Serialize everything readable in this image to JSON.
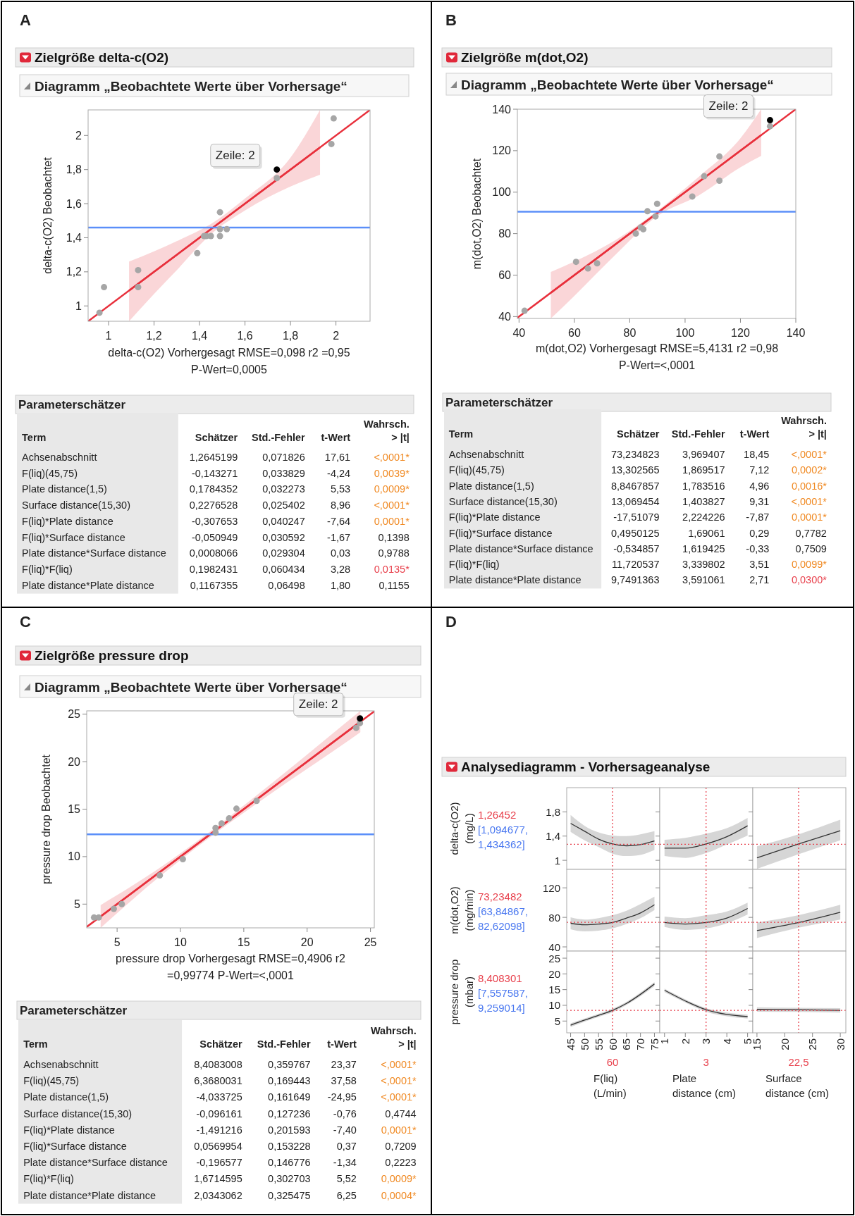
{
  "chart_data": [
    {
      "type": "scatter",
      "title": "Zielgröße delta-c(O2)",
      "subtitle": "Diagramm „Beobachtete Werte über Vorhersage“",
      "xlabel": "delta-c(O2) Vorhergesagt RMSE=0,098 r2 =0,95 P-Wert=0,0005",
      "ylabel": "delta-c(O2) Beobachtet",
      "annotations": [
        "A",
        {
          "text": "Zeile: 2",
          "x": 1.74,
          "y": 1.8
        }
      ],
      "xlim": [
        0.91,
        2.15
      ],
      "ylim": [
        0.91,
        2.15
      ],
      "xticks": [
        1,
        {
          "value": 1.2,
          "label": "1,2"
        },
        {
          "value": 1.4,
          "label": "1,4"
        },
        {
          "value": 1.6,
          "label": "1,6"
        },
        {
          "value": 1.8,
          "label": "1,8"
        },
        2
      ],
      "yticks": [
        1,
        {
          "value": 1.2,
          "label": "1,2"
        },
        {
          "value": 1.4,
          "label": "1,4"
        },
        {
          "value": 1.6,
          "label": "1,6"
        },
        {
          "value": 1.8,
          "label": "1,8"
        },
        2
      ],
      "ref_lines": [
        {
          "axis": "y",
          "value": 1.46,
          "color": "#5b8ff9",
          "line_style": "solid"
        }
      ],
      "series": [
        {
          "color": "#a6a6a6",
          "marker": "circle",
          "x": [
            0.96,
            0.98,
            1.13,
            1.13,
            1.39,
            1.42,
            1.43,
            1.45,
            1.49,
            1.49,
            1.49,
            1.52,
            1.74,
            1.98,
            1.99
          ],
          "values": [
            0.96,
            1.11,
            1.21,
            1.11,
            1.31,
            1.41,
            1.41,
            1.41,
            1.41,
            1.55,
            1.45,
            1.45,
            1.75,
            1.95,
            2.1
          ]
        },
        {
          "color": "#000000",
          "marker": "circle",
          "x": [
            1.74
          ],
          "values": [
            1.8
          ]
        },
        {
          "type": "line",
          "color": "#e8303c",
          "x": [
            0.91,
            2.15
          ],
          "values": [
            0.91,
            2.15
          ]
        },
        {
          "type": "line",
          "color": "#e8303c",
          "x": [
            1.09,
            1.2,
            1.3,
            1.45,
            1.6,
            1.8,
            1.93
          ],
          "values": [
            1.09,
            1.2,
            1.3,
            1.45,
            1.6,
            1.8,
            1.93
          ],
          "lower": [
            0.91,
            1.07,
            1.21,
            1.42,
            1.56,
            1.7,
            1.77
          ],
          "upper": [
            1.26,
            1.32,
            1.38,
            1.48,
            1.63,
            1.87,
            2.15
          ]
        }
      ]
    },
    {
      "type": "other",
      "title": "Parameterschätzer",
      "categories": [
        "Term",
        "Schätzer",
        "Std.-Fehler",
        "t-Wert",
        "Wahrsch. > |t|"
      ],
      "y_categories": [
        "Achsenabschnitt",
        "F(liq)(45,75)",
        "Plate distance(1,5)",
        "Surface distance(15,30)",
        "F(liq)*Plate distance",
        "F(liq)*Surface distance",
        "Plate distance*Surface distance",
        "F(liq)*F(liq)",
        "Plate distance*Plate distance"
      ],
      "cell_labels": [
        [
          "1,2645199",
          "0,071826",
          "17,61",
          "<,0001*"
        ],
        [
          "-0,143271",
          "0,033829",
          "-4,24",
          "0,0039*"
        ],
        [
          "0,1784352",
          "0,032273",
          "5,53",
          "0,0009*"
        ],
        [
          "0,2276528",
          "0,025402",
          "8,96",
          "<,0001*"
        ],
        [
          "-0,307653",
          "0,040247",
          "-7,64",
          "0,0001*"
        ],
        [
          "-0,050949",
          "0,030592",
          "-1,67",
          "0,1398"
        ],
        [
          "0,0008066",
          "0,029304",
          "0,03",
          "0,9788"
        ],
        [
          "0,1982431",
          "0,060434",
          "3,28",
          "0,0135*"
        ],
        [
          "0,1167355",
          "0,06498",
          "1,80",
          "0,1155"
        ]
      ],
      "colors": [
        [
          null,
          null,
          null,
          "#f08a24"
        ],
        [
          null,
          null,
          null,
          "#f08a24"
        ],
        [
          null,
          null,
          null,
          "#f08a24"
        ],
        [
          null,
          null,
          null,
          "#f08a24"
        ],
        [
          null,
          null,
          null,
          "#f08a24"
        ],
        [
          null,
          null,
          null,
          null
        ],
        [
          null,
          null,
          null,
          null
        ],
        [
          null,
          null,
          null,
          "#e8404c"
        ],
        [
          null,
          null,
          null,
          null
        ]
      ]
    },
    {
      "type": "scatter",
      "title": "Zielgröße m(dot,O2)",
      "subtitle": "Diagramm „Beobachtete Werte über Vorhersage“",
      "xlabel": "m(dot,O2) Vorhergesagt RMSE=5,4131 r2 =0,98 P-Wert=<,0001",
      "ylabel": "m(dot,O2) Beobachtet",
      "annotations": [
        "B",
        {
          "text": "Zeile: 2",
          "x": 130.7,
          "y": 134.7
        }
      ],
      "xlim": [
        39.4,
        140
      ],
      "ylim": [
        39.1,
        140
      ],
      "xticks": [
        40,
        60,
        80,
        100,
        120,
        140
      ],
      "yticks": [
        40,
        60,
        80,
        100,
        120,
        140
      ],
      "ref_lines": [
        {
          "axis": "y",
          "value": 90.6,
          "color": "#5b8ff9",
          "line_style": "solid"
        }
      ],
      "series": [
        {
          "color": "#a6a6a6",
          "marker": "circle",
          "x": [
            42,
            60.6,
            64.9,
            68.2,
            82.2,
            84,
            84.9,
            86.4,
            89.3,
            89.9,
            102.6,
            106.9,
            112.4,
            112.4,
            130.7
          ],
          "values": [
            42.8,
            66.4,
            63.2,
            65.7,
            80,
            83,
            82.1,
            90.8,
            88.3,
            94.4,
            97.9,
            107.7,
            117.2,
            105.5,
            131.8
          ]
        },
        {
          "color": "#000000",
          "marker": "circle",
          "x": [
            130.7
          ],
          "values": [
            134.7
          ]
        },
        {
          "type": "line",
          "color": "#e8303c",
          "x": [
            39.4,
            140
          ],
          "values": [
            39.4,
            140
          ]
        },
        {
          "type": "line",
          "color": "#e8303c",
          "x": [
            51.5,
            60,
            75,
            90,
            105,
            120,
            127.5
          ],
          "values": [
            51.5,
            60,
            75,
            90,
            105,
            120,
            127.5
          ],
          "lower": [
            39.1,
            50,
            70,
            88.5,
            98.5,
            112,
            117.5
          ],
          "upper": [
            61.5,
            66.5,
            77,
            91,
            107.5,
            126,
            140
          ]
        }
      ]
    },
    {
      "type": "other",
      "title": "Parameterschätzer",
      "categories": [
        "Term",
        "Schätzer",
        "Std.-Fehler",
        "t-Wert",
        "Wahrsch. > |t|"
      ],
      "y_categories": [
        "Achsenabschnitt",
        "F(liq)(45,75)",
        "Plate distance(1,5)",
        "Surface distance(15,30)",
        "F(liq)*Plate distance",
        "F(liq)*Surface distance",
        "Plate distance*Surface distance",
        "F(liq)*F(liq)",
        "Plate distance*Plate distance"
      ],
      "cell_labels": [
        [
          "73,234823",
          "3,969407",
          "18,45",
          "<,0001*"
        ],
        [
          "13,302565",
          "1,869517",
          "7,12",
          "0,0002*"
        ],
        [
          "8,8467857",
          "1,783516",
          "4,96",
          "0,0016*"
        ],
        [
          "13,069454",
          "1,403827",
          "9,31",
          "<,0001*"
        ],
        [
          "-17,51079",
          "2,224226",
          "-7,87",
          "0,0001*"
        ],
        [
          "0,4950125",
          "1,69061",
          "0,29",
          "0,7782"
        ],
        [
          "-0,534857",
          "1,619425",
          "-0,33",
          "0,7509"
        ],
        [
          "11,720537",
          "3,339802",
          "3,51",
          "0,0099*"
        ],
        [
          "9,7491363",
          "3,591061",
          "2,71",
          "0,0300*"
        ]
      ],
      "colors": [
        [
          null,
          null,
          null,
          "#f08a24"
        ],
        [
          null,
          null,
          null,
          "#f08a24"
        ],
        [
          null,
          null,
          null,
          "#f08a24"
        ],
        [
          null,
          null,
          null,
          "#f08a24"
        ],
        [
          null,
          null,
          null,
          "#f08a24"
        ],
        [
          null,
          null,
          null,
          null
        ],
        [
          null,
          null,
          null,
          null
        ],
        [
          null,
          null,
          null,
          "#f08a24"
        ],
        [
          null,
          null,
          null,
          "#e8404c"
        ]
      ]
    },
    {
      "type": "scatter",
      "title": "Zielgröße pressure drop",
      "subtitle": "Diagramm „Beobachtete Werte über Vorhersage“",
      "xlabel": "pressure drop Vorhergesagt RMSE=0,4906 r2 =0,99774 P-Wert=<,0001",
      "ylabel": "pressure drop Beobachtet",
      "annotations": [
        "C",
        {
          "text": "Zeile: 2",
          "x": 24.17,
          "y": 24.55
        }
      ],
      "xlim": [
        2.6,
        25.3
      ],
      "ylim": [
        2.5,
        25.35
      ],
      "xticks": [
        5,
        10,
        15,
        20,
        25
      ],
      "yticks": [
        5,
        10,
        15,
        20,
        25
      ],
      "ref_lines": [
        {
          "axis": "y",
          "value": 12.35,
          "color": "#5b8ff9",
          "line_style": "solid"
        }
      ],
      "series": [
        {
          "color": "#a6a6a6",
          "marker": "circle",
          "x": [
            3.18,
            3.55,
            4.74,
            5.37,
            8.37,
            10.19,
            12.77,
            12.77,
            13.25,
            13.84,
            14.42,
            16.01,
            23.87,
            24.17
          ],
          "values": [
            3.59,
            3.59,
            4.5,
            5,
            8.02,
            9.73,
            13.02,
            12.52,
            13.49,
            14.03,
            15.05,
            15.87,
            23.56,
            24.06
          ]
        },
        {
          "color": "#000000",
          "marker": "circle",
          "x": [
            24.17
          ],
          "values": [
            24.55
          ]
        },
        {
          "type": "line",
          "color": "#e8303c",
          "x": [
            2.6,
            25.3
          ],
          "values": [
            2.6,
            25.3
          ]
        },
        {
          "type": "line",
          "color": "#e8303c",
          "x": [
            3.7,
            8,
            12.4,
            17,
            22.6,
            24.2
          ],
          "values": [
            3.7,
            8,
            12.4,
            17,
            22.6,
            24.2
          ],
          "lower": [
            2.5,
            7.5,
            12.1,
            16.5,
            21.6,
            23.1
          ],
          "upper": [
            4.9,
            8.5,
            12.7,
            17.5,
            23.6,
            25.35
          ]
        }
      ]
    },
    {
      "type": "other",
      "title": "Parameterschätzer",
      "categories": [
        "Term",
        "Schätzer",
        "Std.-Fehler",
        "t-Wert",
        "Wahrsch. > |t|"
      ],
      "y_categories": [
        "Achsenabschnitt",
        "F(liq)(45,75)",
        "Plate distance(1,5)",
        "Surface distance(15,30)",
        "F(liq)*Plate distance",
        "F(liq)*Surface distance",
        "Plate distance*Surface distance",
        "F(liq)*F(liq)",
        "Plate distance*Plate distance"
      ],
      "cell_labels": [
        [
          "8,4083008",
          "0,359767",
          "23,37",
          "<,0001*"
        ],
        [
          "6,3680031",
          "0,169443",
          "37,58",
          "<,0001*"
        ],
        [
          "-4,033725",
          "0,161649",
          "-24,95",
          "<,0001*"
        ],
        [
          "-0,096161",
          "0,127236",
          "-0,76",
          "0,4744"
        ],
        [
          "-1,491216",
          "0,201593",
          "-7,40",
          "0,0001*"
        ],
        [
          "0,0569954",
          "0,153228",
          "0,37",
          "0,7209"
        ],
        [
          "-0,196577",
          "0,146776",
          "-1,34",
          "0,2223"
        ],
        [
          "1,6714595",
          "0,302703",
          "5,52",
          "0,0009*"
        ],
        [
          "2,0343062",
          "0,325475",
          "6,25",
          "0,0004*"
        ]
      ],
      "colors": [
        [
          null,
          null,
          null,
          "#f08a24"
        ],
        [
          null,
          null,
          null,
          "#f08a24"
        ],
        [
          null,
          null,
          null,
          "#f08a24"
        ],
        [
          null,
          null,
          null,
          null
        ],
        [
          null,
          null,
          null,
          "#f08a24"
        ],
        [
          null,
          null,
          null,
          null
        ],
        [
          null,
          null,
          null,
          null
        ],
        [
          null,
          null,
          null,
          "#f08a24"
        ],
        [
          null,
          null,
          null,
          "#f08a24"
        ]
      ]
    },
    {
      "type": "line",
      "title": "Analysediagramm - Vorhersageanalyse",
      "ylabel": "delta-c(O2) (mg/L)",
      "annotations": [
        "D",
        "[1,094677, 1,434362]"
      ],
      "xlim": [
        43.6,
        76.9
      ],
      "ylim": [
        0.85,
        2.2
      ],
      "xticks": [
        45,
        50,
        55,
        60,
        65,
        70,
        75
      ],
      "yticks": [
        1,
        {
          "value": 1.4,
          "label": "1,4"
        },
        {
          "value": 1.8,
          "label": "1,8"
        }
      ],
      "tick_labels": "y",
      "ref_lines": [
        {
          "axis": "x",
          "value": 60,
          "color": "#e8404c",
          "line_style": "dotted"
        },
        {
          "axis": "y",
          "value": 1.26452,
          "label": "1,26452",
          "color": "#e8404c",
          "line_style": "dotted"
        }
      ],
      "series": [
        {
          "color": "#333333",
          "x": [
            45,
            50,
            55,
            60,
            65,
            70,
            75
          ],
          "values": [
            1.61,
            1.48,
            1.35,
            1.27,
            1.24,
            1.26,
            1.32
          ],
          "lower": [
            1.47,
            1.33,
            1.22,
            1.11,
            1.07,
            1.09,
            1.17
          ],
          "upper": [
            1.75,
            1.57,
            1.46,
            1.41,
            1.4,
            1.43,
            1.48
          ]
        }
      ]
    },
    {
      "type": "line",
      "xlim": [
        0.77,
        5.25
      ],
      "ylim": [
        0.85,
        2.2
      ],
      "xticks": [
        1,
        2,
        3,
        4,
        5
      ],
      "yticks": [
        {
          "value": 1,
          "label": null
        },
        {
          "value": 1.4,
          "label": null
        },
        {
          "value": 1.8,
          "label": null
        }
      ],
      "tick_labels": false,
      "ref_lines": [
        {
          "axis": "x",
          "value": 3,
          "color": "#e8404c",
          "line_style": "dotted"
        },
        {
          "axis": "y",
          "value": 1.26452,
          "color": "#e8404c",
          "line_style": "dotted"
        }
      ],
      "series": [
        {
          "color": "#333333",
          "x": [
            1,
            2,
            3,
            4,
            5
          ],
          "values": [
            1.2,
            1.2,
            1.27,
            1.39,
            1.57
          ],
          "lower": [
            1.07,
            1.04,
            1.12,
            1.26,
            1.41
          ],
          "upper": [
            1.34,
            1.37,
            1.44,
            1.53,
            1.7
          ]
        }
      ]
    },
    {
      "type": "line",
      "xlim": [
        14.25,
        31
      ],
      "ylim": [
        0.85,
        2.2
      ],
      "xticks": [
        15,
        20,
        25,
        30
      ],
      "yticks": [
        {
          "value": 1,
          "label": null
        },
        {
          "value": 1.4,
          "label": null
        },
        {
          "value": 1.8,
          "label": null
        }
      ],
      "tick_labels": false,
      "ref_lines": [
        {
          "axis": "x",
          "value": 22.5,
          "color": "#e8404c",
          "line_style": "dotted"
        },
        {
          "axis": "y",
          "value": 1.26452,
          "color": "#e8404c",
          "line_style": "dotted"
        }
      ],
      "series": [
        {
          "color": "#333333",
          "x": [
            15,
            22.5,
            30
          ],
          "values": [
            1.04,
            1.27,
            1.49
          ],
          "lower": [
            0.86,
            1.1,
            1.33
          ],
          "upper": [
            1.23,
            1.43,
            1.67
          ]
        }
      ]
    },
    {
      "type": "line",
      "ylabel": "m(dot,O2) (mg/min)",
      "annotations": [
        "[63,84867, 82,62098]"
      ],
      "xlim": [
        43.6,
        76.9
      ],
      "ylim": [
        34.3,
        145
      ],
      "xticks": [
        45,
        50,
        55,
        60,
        65,
        70,
        75
      ],
      "yticks": [
        40,
        80,
        120
      ],
      "tick_labels": "y",
      "ref_lines": [
        {
          "axis": "x",
          "value": 60,
          "color": "#e8404c",
          "line_style": "dotted"
        },
        {
          "axis": "y",
          "value": 73.23482,
          "label": "73,23482",
          "color": "#e8404c",
          "line_style": "dotted"
        }
      ],
      "series": [
        {
          "color": "#333333",
          "x": [
            45,
            50,
            55,
            60,
            65,
            70,
            75
          ],
          "values": [
            72,
            70,
            71,
            73,
            79,
            86,
            97
          ],
          "lower": [
            64,
            61,
            62,
            65,
            71,
            79,
            90
          ],
          "upper": [
            80,
            77,
            79,
            83,
            89,
            98,
            108
          ]
        }
      ]
    },
    {
      "type": "line",
      "xlim": [
        0.77,
        5.25
      ],
      "ylim": [
        34.3,
        145
      ],
      "xticks": [
        1,
        2,
        3,
        4,
        5
      ],
      "yticks": [
        40,
        80,
        120
      ],
      "tick_labels": false,
      "ref_lines": [
        {
          "axis": "x",
          "value": 3,
          "color": "#e8404c",
          "line_style": "dotted"
        },
        {
          "axis": "y",
          "value": 73.23482,
          "color": "#e8404c",
          "line_style": "dotted"
        }
      ],
      "series": [
        {
          "color": "#333333",
          "x": [
            1,
            2,
            3,
            4,
            5
          ],
          "values": [
            73,
            71,
            73,
            79,
            92
          ],
          "lower": [
            67,
            63,
            65,
            72,
            84
          ],
          "upper": [
            81,
            79,
            83,
            88,
            100
          ]
        }
      ]
    },
    {
      "type": "line",
      "xlim": [
        14.25,
        31
      ],
      "ylim": [
        34.3,
        145
      ],
      "xticks": [
        15,
        20,
        25,
        30
      ],
      "yticks": [
        40,
        80,
        120
      ],
      "tick_labels": false,
      "ref_lines": [
        {
          "axis": "x",
          "value": 22.5,
          "color": "#e8404c",
          "line_style": "dotted"
        },
        {
          "axis": "y",
          "value": 73.23482,
          "color": "#e8404c",
          "line_style": "dotted"
        }
      ],
      "series": [
        {
          "color": "#333333",
          "x": [
            15,
            22.5,
            30
          ],
          "values": [
            62,
            73,
            87
          ],
          "lower": [
            52,
            66,
            77
          ],
          "upper": [
            73,
            83,
            97
          ]
        }
      ]
    },
    {
      "type": "line",
      "ylabel": "pressure drop (mbar)",
      "xlabel": "F(liq) (L/min)",
      "annotations": [
        "[7,557587, 9,259014]"
      ],
      "xlim": [
        43.6,
        76.9
      ],
      "ylim": [
        1.25,
        27.25
      ],
      "xticks": [
        45,
        50,
        55,
        60,
        65,
        70,
        75
      ],
      "yticks": [
        5,
        10,
        15,
        20,
        25
      ],
      "ref_lines": [
        {
          "axis": "x",
          "value": 60,
          "label": "60",
          "color": "#e8404c",
          "line_style": "dotted"
        },
        {
          "axis": "y",
          "value": 8.408301,
          "label": "8,408301",
          "color": "#e8404c",
          "line_style": "dotted"
        }
      ],
      "series": [
        {
          "color": "#333333",
          "x": [
            45,
            50,
            55,
            60,
            65,
            70,
            75
          ],
          "values": [
            3.7,
            5.3,
            6.8,
            8.4,
            10.6,
            13.5,
            16.8
          ],
          "lower": [
            3.1,
            4.8,
            6.3,
            7.8,
            10.1,
            12.9,
            16.1
          ],
          "upper": [
            4.3,
            5.8,
            7.3,
            8.9,
            11.1,
            14.1,
            17.4
          ]
        }
      ]
    },
    {
      "type": "line",
      "xlabel": "Plate distance (cm)",
      "xlim": [
        0.77,
        5.25
      ],
      "ylim": [
        1.25,
        27.25
      ],
      "xticks": [
        1,
        2,
        3,
        4,
        5
      ],
      "yticks": [
        5,
        10,
        15,
        20,
        25
      ],
      "tick_labels": "x",
      "ref_lines": [
        {
          "axis": "x",
          "value": 3,
          "label": "3",
          "color": "#e8404c",
          "line_style": "dotted"
        },
        {
          "axis": "y",
          "value": 8.408301,
          "color": "#e8404c",
          "line_style": "dotted"
        }
      ],
      "series": [
        {
          "color": "#333333",
          "x": [
            1,
            2,
            3,
            4,
            5
          ],
          "values": [
            14.8,
            11.4,
            8.6,
            7.1,
            6.4
          ],
          "lower": [
            14.2,
            10.9,
            8,
            6.5,
            5.8
          ],
          "upper": [
            15.3,
            11.9,
            9.1,
            7.7,
            7
          ]
        }
      ]
    },
    {
      "type": "line",
      "xlabel": "Surface distance (cm)",
      "xlim": [
        14.25,
        31
      ],
      "ylim": [
        1.25,
        27.25
      ],
      "xticks": [
        15,
        20,
        25,
        30
      ],
      "yticks": [
        5,
        10,
        15,
        20,
        25
      ],
      "tick_labels": "x",
      "ref_lines": [
        {
          "axis": "x",
          "value": 22.5,
          "label": "22,5",
          "color": "#e8404c",
          "line_style": "dotted"
        },
        {
          "axis": "y",
          "value": 8.408301,
          "color": "#e8404c",
          "line_style": "dotted"
        }
      ],
      "series": [
        {
          "color": "#333333",
          "x": [
            15,
            22.5,
            30
          ],
          "values": [
            8.7,
            8.6,
            8.4
          ],
          "lower": [
            8,
            7.9,
            7.7
          ],
          "upper": [
            9.4,
            9.2,
            9.1
          ]
        }
      ]
    }
  ]
}
